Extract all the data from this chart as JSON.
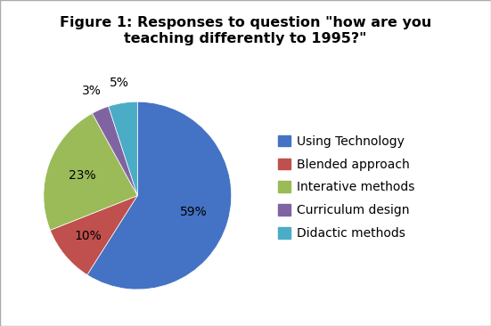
{
  "title_line1": "Figure 1: Responses to question \"how are you",
  "title_line2": "teaching differently to 1995?\"",
  "title_fontsize": 11.5,
  "labels": [
    "Using Technology",
    "Blended approach",
    "Interative methods",
    "Curriculum design",
    "Didactic methods"
  ],
  "sizes": [
    59,
    10,
    23,
    3,
    5
  ],
  "colors": [
    "#4472C4",
    "#C0504D",
    "#9BBB59",
    "#8064A2",
    "#4BACC6"
  ],
  "pct_labels": [
    "59%",
    "10%",
    "23%",
    "3%",
    "5%"
  ],
  "radius_factors": [
    0.62,
    0.68,
    0.62,
    1.22,
    1.22
  ],
  "startangle": 90,
  "background_color": "#ffffff",
  "legend_fontsize": 10,
  "pct_fontsize": 10
}
